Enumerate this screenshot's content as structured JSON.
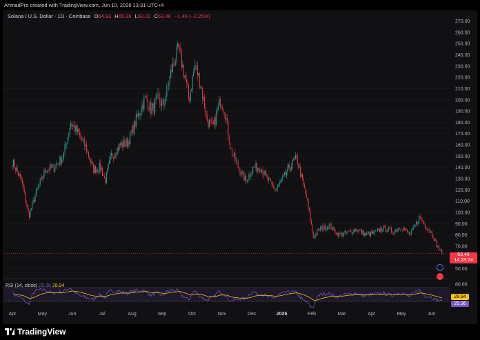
{
  "header": {
    "credit": "AhmadPro created with TradingView.com, Jun 10, 2026 13:31 UTC+4"
  },
  "symbol": {
    "name": "Solana / U.S. Dollar · 1D · Coinbase",
    "o_label": "O",
    "o": "64.93",
    "h_label": "H",
    "h": "65.26",
    "l_label": "L",
    "l": "63.02",
    "c_label": "C",
    "c": "63.46",
    "change": "−1.46 (−2.25%)"
  },
  "price_badge": {
    "price": "63.46",
    "countdown": "14:28:24",
    "color": "#f23645"
  },
  "rsi": {
    "label": "RSI (14, close)",
    "rsi_value": "25.36",
    "ma_value": "28.94",
    "rsi_color": "#7e57c2",
    "ma_color": "#f0c419",
    "axis_ticks": [
      "80.00"
    ],
    "upper": 70,
    "lower": 30
  },
  "colors": {
    "up": "#26a69a",
    "down": "#f23645",
    "background": "#111113"
  },
  "logo": {
    "text": "TradingView"
  },
  "chart_data": {
    "type": "candlestick",
    "title": "Solana / U.S. Dollar · 1D · Coinbase",
    "y_axis_ticks": [
      270,
      260,
      250,
      240,
      230,
      220,
      210,
      200,
      190,
      180,
      170,
      160,
      150,
      140,
      130,
      120,
      110,
      100,
      90,
      80,
      70,
      60,
      50
    ],
    "ylim": [
      43,
      274
    ],
    "x_ticks": [
      "Apr",
      "May",
      "Jun",
      "Jul",
      "Aug",
      "Sep",
      "Oct",
      "Nov",
      "Dec",
      "2026",
      "Feb",
      "Mar",
      "Apr",
      "May",
      "Jun"
    ],
    "x_tick_months_index": [
      0,
      1,
      2,
      3,
      4,
      5,
      6,
      7,
      8,
      9,
      10,
      11,
      12,
      13,
      14
    ],
    "price_path": [
      [
        0,
        145
      ],
      [
        0.3,
        128
      ],
      [
        0.55,
        97
      ],
      [
        0.8,
        118
      ],
      [
        1.1,
        138
      ],
      [
        1.4,
        140
      ],
      [
        1.7,
        150
      ],
      [
        1.95,
        180
      ],
      [
        2.2,
        170
      ],
      [
        2.45,
        158
      ],
      [
        2.7,
        138
      ],
      [
        2.95,
        140
      ],
      [
        3.1,
        128
      ],
      [
        3.3,
        150
      ],
      [
        3.6,
        160
      ],
      [
        3.85,
        162
      ],
      [
        4.05,
        176
      ],
      [
        4.25,
        190
      ],
      [
        4.45,
        202
      ],
      [
        4.65,
        190
      ],
      [
        4.85,
        200
      ],
      [
        5.05,
        195
      ],
      [
        5.3,
        225
      ],
      [
        5.55,
        245
      ],
      [
        5.75,
        222
      ],
      [
        5.9,
        200
      ],
      [
        6.1,
        232
      ],
      [
        6.3,
        212
      ],
      [
        6.5,
        182
      ],
      [
        6.7,
        175
      ],
      [
        6.95,
        200
      ],
      [
        7.1,
        190
      ],
      [
        7.3,
        155
      ],
      [
        7.55,
        140
      ],
      [
        7.8,
        128
      ],
      [
        8.05,
        140
      ],
      [
        8.3,
        140
      ],
      [
        8.55,
        128
      ],
      [
        8.8,
        120
      ],
      [
        9.05,
        130
      ],
      [
        9.3,
        142
      ],
      [
        9.5,
        148
      ],
      [
        9.7,
        126
      ],
      [
        9.85,
        110
      ],
      [
        10.05,
        78
      ],
      [
        10.3,
        86
      ],
      [
        10.6,
        88
      ],
      [
        10.9,
        80
      ],
      [
        11.2,
        82
      ],
      [
        11.5,
        85
      ],
      [
        11.8,
        80
      ],
      [
        12.1,
        82
      ],
      [
        12.4,
        86
      ],
      [
        12.7,
        83
      ],
      [
        13.0,
        87
      ],
      [
        13.3,
        80
      ],
      [
        13.6,
        96
      ],
      [
        13.8,
        88
      ],
      [
        14.0,
        82
      ],
      [
        14.2,
        70
      ],
      [
        14.35,
        63.46
      ]
    ],
    "last_close": 63.46
  }
}
